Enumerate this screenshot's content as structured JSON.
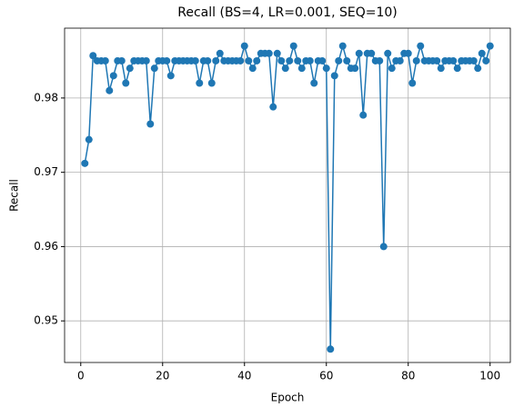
{
  "chart_data": {
    "type": "line",
    "title": "Recall (BS=4, LR=0.001, SEQ=10)",
    "xlabel": "Epoch",
    "ylabel": "Recall",
    "x": [
      1,
      2,
      3,
      4,
      5,
      6,
      7,
      8,
      9,
      10,
      11,
      12,
      13,
      14,
      15,
      16,
      17,
      18,
      19,
      20,
      21,
      22,
      23,
      24,
      25,
      26,
      27,
      28,
      29,
      30,
      31,
      32,
      33,
      34,
      35,
      36,
      37,
      38,
      39,
      40,
      41,
      42,
      43,
      44,
      45,
      46,
      47,
      48,
      49,
      50,
      51,
      52,
      53,
      54,
      55,
      56,
      57,
      58,
      59,
      60,
      61,
      62,
      63,
      64,
      65,
      66,
      67,
      68,
      69,
      70,
      71,
      72,
      73,
      74,
      75,
      76,
      77,
      78,
      79,
      80,
      81,
      82,
      83,
      84,
      85,
      86,
      87,
      88,
      89,
      90,
      91,
      92,
      93,
      94,
      95,
      96,
      97,
      98,
      99,
      100
    ],
    "series": [
      {
        "name": "Recall",
        "color": "#1f77b4",
        "values": [
          0.9712,
          0.9744,
          0.9857,
          0.985,
          0.985,
          0.985,
          0.981,
          0.983,
          0.985,
          0.985,
          0.982,
          0.984,
          0.985,
          0.985,
          0.985,
          0.985,
          0.9765,
          0.984,
          0.985,
          0.985,
          0.985,
          0.983,
          0.985,
          0.985,
          0.985,
          0.985,
          0.985,
          0.985,
          0.982,
          0.985,
          0.985,
          0.982,
          0.985,
          0.986,
          0.985,
          0.985,
          0.985,
          0.985,
          0.985,
          0.987,
          0.985,
          0.984,
          0.985,
          0.986,
          0.986,
          0.986,
          0.9788,
          0.986,
          0.985,
          0.984,
          0.985,
          0.987,
          0.985,
          0.984,
          0.985,
          0.985,
          0.982,
          0.985,
          0.985,
          0.984,
          0.9462,
          0.983,
          0.985,
          0.987,
          0.985,
          0.984,
          0.984,
          0.986,
          0.9777,
          0.986,
          0.986,
          0.985,
          0.985,
          0.96,
          0.986,
          0.984,
          0.985,
          0.985,
          0.986,
          0.986,
          0.982,
          0.985,
          0.987,
          0.985,
          0.985,
          0.985,
          0.985,
          0.984,
          0.985,
          0.985,
          0.985,
          0.984,
          0.985,
          0.985,
          0.985,
          0.985,
          0.984,
          0.986,
          0.985,
          0.987
        ]
      }
    ],
    "xlim": [
      -3.95,
      104.95
    ],
    "xticks": [
      0,
      20,
      40,
      60,
      80,
      100
    ],
    "ylim": [
      0.9444,
      0.9894
    ],
    "yticks": [
      0.95,
      0.96,
      0.97,
      0.98
    ],
    "grid": true
  }
}
